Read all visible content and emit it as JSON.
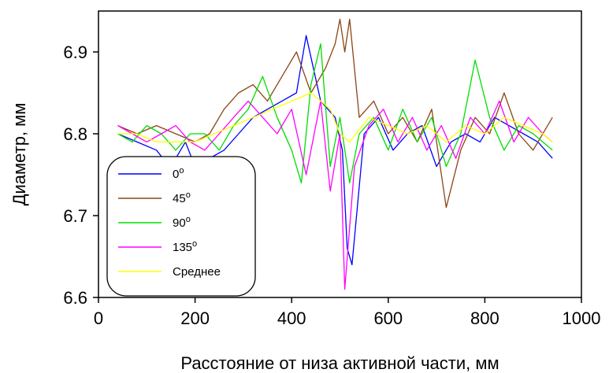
{
  "chart_data": {
    "type": "line",
    "title": "",
    "xlabel": "Расстояние от низа активной части, мм",
    "ylabel": "Диаметр, мм",
    "xlim": [
      0,
      1000
    ],
    "ylim": [
      6.6,
      6.95
    ],
    "xticks": [
      0,
      200,
      400,
      600,
      800,
      1000
    ],
    "xtick_labels": [
      "0",
      "200",
      "400",
      "600",
      "800",
      "1000"
    ],
    "yticks": [
      6.6,
      6.7,
      6.8,
      6.9
    ],
    "ytick_labels": [
      "6.6",
      "6.7",
      "6.8",
      "6.9"
    ],
    "grid": false,
    "legend_position": "bottom-left",
    "series": [
      {
        "name": "0",
        "degree": "o",
        "color": "#0000ff",
        "x": [
          40,
          80,
          120,
          140,
          160,
          180,
          200,
          230,
          260,
          290,
          320,
          350,
          380,
          410,
          430,
          460,
          490,
          505,
          515,
          525,
          550,
          580,
          610,
          640,
          670,
          700,
          730,
          760,
          790,
          820,
          850,
          880,
          910,
          940
        ],
        "y": [
          6.8,
          6.79,
          6.78,
          6.765,
          6.77,
          6.79,
          6.76,
          6.77,
          6.78,
          6.8,
          6.82,
          6.83,
          6.84,
          6.85,
          6.92,
          6.84,
          6.82,
          6.78,
          6.66,
          6.64,
          6.8,
          6.82,
          6.78,
          6.8,
          6.81,
          6.76,
          6.79,
          6.8,
          6.79,
          6.82,
          6.81,
          6.8,
          6.79,
          6.77
        ]
      },
      {
        "name": "45",
        "degree": "o",
        "color": "#8b4513",
        "x": [
          40,
          80,
          120,
          160,
          200,
          230,
          260,
          290,
          320,
          350,
          380,
          410,
          440,
          470,
          490,
          500,
          510,
          520,
          540,
          570,
          600,
          630,
          660,
          690,
          720,
          750,
          780,
          810,
          840,
          870,
          900,
          940
        ],
        "y": [
          6.81,
          6.8,
          6.81,
          6.8,
          6.79,
          6.8,
          6.83,
          6.85,
          6.86,
          6.84,
          6.87,
          6.9,
          6.85,
          6.88,
          6.91,
          6.94,
          6.9,
          6.94,
          6.82,
          6.84,
          6.8,
          6.82,
          6.79,
          6.83,
          6.71,
          6.78,
          6.82,
          6.8,
          6.85,
          6.8,
          6.78,
          6.82
        ]
      },
      {
        "name": "90",
        "degree": "o",
        "color": "#00dd00",
        "x": [
          40,
          70,
          100,
          130,
          160,
          190,
          220,
          250,
          280,
          310,
          340,
          370,
          400,
          420,
          440,
          460,
          480,
          500,
          520,
          540,
          570,
          600,
          630,
          660,
          690,
          720,
          750,
          780,
          810,
          840,
          870,
          900,
          940
        ],
        "y": [
          6.8,
          6.79,
          6.81,
          6.8,
          6.78,
          6.8,
          6.8,
          6.78,
          6.81,
          6.83,
          6.87,
          6.82,
          6.78,
          6.74,
          6.86,
          6.91,
          6.76,
          6.82,
          6.74,
          6.8,
          6.82,
          6.78,
          6.83,
          6.79,
          6.82,
          6.76,
          6.8,
          6.89,
          6.82,
          6.78,
          6.81,
          6.8,
          6.78
        ]
      },
      {
        "name": "135",
        "degree": "o",
        "color": "#ff00ff",
        "x": [
          40,
          70,
          100,
          130,
          160,
          190,
          220,
          250,
          280,
          310,
          340,
          370,
          400,
          430,
          460,
          480,
          500,
          510,
          530,
          560,
          590,
          620,
          650,
          680,
          710,
          740,
          770,
          800,
          830,
          860,
          890,
          920,
          940
        ],
        "y": [
          6.81,
          6.8,
          6.79,
          6.8,
          6.81,
          6.79,
          6.78,
          6.8,
          6.82,
          6.84,
          6.82,
          6.8,
          6.83,
          6.75,
          6.84,
          6.73,
          6.8,
          6.61,
          6.76,
          6.81,
          6.83,
          6.79,
          6.82,
          6.78,
          6.81,
          6.77,
          6.82,
          6.8,
          6.84,
          6.79,
          6.82,
          6.8,
          6.79
        ]
      },
      {
        "name": "Среднее",
        "degree": "",
        "color": "#ffff00",
        "x": [
          40,
          80,
          120,
          160,
          200,
          240,
          280,
          320,
          360,
          400,
          440,
          480,
          500,
          520,
          560,
          600,
          640,
          680,
          720,
          760,
          800,
          840,
          880,
          920,
          940
        ],
        "y": [
          6.8,
          6.8,
          6.79,
          6.79,
          6.79,
          6.8,
          6.81,
          6.82,
          6.83,
          6.84,
          6.85,
          6.83,
          6.8,
          6.79,
          6.82,
          6.81,
          6.8,
          6.81,
          6.79,
          6.81,
          6.8,
          6.82,
          6.81,
          6.8,
          6.79
        ]
      }
    ]
  }
}
